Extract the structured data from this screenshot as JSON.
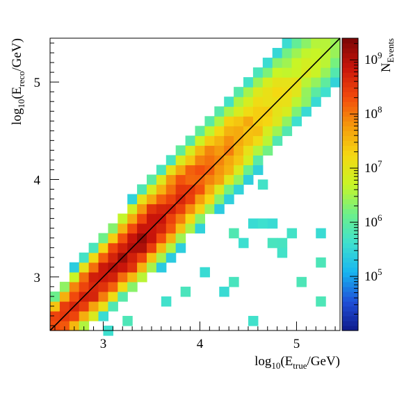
{
  "chart_data": {
    "type": "heatmap",
    "title": "",
    "x": {
      "label_base": "log",
      "label_sub": "10",
      "label_open": "(E",
      "label_inner_sub": "true",
      "label_close": "/GeV)",
      "range": [
        2.45,
        5.45
      ],
      "ticks": [
        3,
        4,
        5
      ],
      "tick_labels": [
        "3",
        "4",
        "5"
      ],
      "bin_width": 0.1
    },
    "y": {
      "label_base": "log",
      "label_sub": "10",
      "label_open": "(E",
      "label_inner_sub": "reco",
      "label_close": "/GeV)",
      "range": [
        2.45,
        5.45
      ],
      "ticks": [
        3,
        4,
        5
      ],
      "tick_labels": [
        "3",
        "4",
        "5"
      ],
      "bin_width": 0.1
    },
    "z": {
      "label_base": "N",
      "label_sub": "Events",
      "scale": "log",
      "log_range": [
        4.0,
        9.4
      ],
      "ticks": [
        {
          "value": 5,
          "base": "10",
          "exp": "5"
        },
        {
          "value": 6,
          "base": "10",
          "exp": "6"
        },
        {
          "value": 7,
          "base": "10",
          "exp": "7"
        },
        {
          "value": 8,
          "base": "10",
          "exp": "8"
        },
        {
          "value": 9,
          "base": "10",
          "exp": "9"
        }
      ],
      "colormap": [
        "#0d1a8a",
        "#1f4fd8",
        "#18b5f0",
        "#3ee0cf",
        "#6cf08a",
        "#c8f526",
        "#f5d812",
        "#f59a0d",
        "#f24a0c",
        "#c8140a",
        "#7a0606"
      ]
    },
    "reference_line": {
      "from": [
        2.45,
        2.45
      ],
      "to": [
        5.45,
        5.45
      ],
      "color": "#000000"
    },
    "grid": false,
    "legend": "colorbar-right",
    "description_model": {
      "ridge_peak_x": 3.35,
      "ridge_peak_log_count": 9.1,
      "ridge_slope_per_decade": -1.3,
      "spread_sigma": 0.26,
      "spread_asymmetry": 0.9,
      "cutoff_log_count": 5.3,
      "sparse_tail_log_count": 5.7
    },
    "sparse_bins": [
      {
        "x": 3.85,
        "y": 2.85
      },
      {
        "x": 3.65,
        "y": 2.75
      },
      {
        "x": 3.25,
        "y": 2.55
      },
      {
        "x": 4.05,
        "y": 3.05
      },
      {
        "x": 4.25,
        "y": 2.85
      },
      {
        "x": 4.35,
        "y": 2.95
      },
      {
        "x": 4.35,
        "y": 3.45
      },
      {
        "x": 4.45,
        "y": 3.35
      },
      {
        "x": 4.55,
        "y": 3.55
      },
      {
        "x": 4.65,
        "y": 3.55
      },
      {
        "x": 4.75,
        "y": 3.55
      },
      {
        "x": 4.65,
        "y": 3.95
      },
      {
        "x": 4.75,
        "y": 3.35
      },
      {
        "x": 4.85,
        "y": 3.35
      },
      {
        "x": 4.85,
        "y": 3.25
      },
      {
        "x": 5.05,
        "y": 2.95
      },
      {
        "x": 5.25,
        "y": 3.45
      },
      {
        "x": 5.25,
        "y": 3.15
      },
      {
        "x": 5.25,
        "y": 2.75
      },
      {
        "x": 4.95,
        "y": 3.45
      },
      {
        "x": 4.55,
        "y": 2.55
      },
      {
        "x": 3.05,
        "y": 2.45
      }
    ]
  }
}
